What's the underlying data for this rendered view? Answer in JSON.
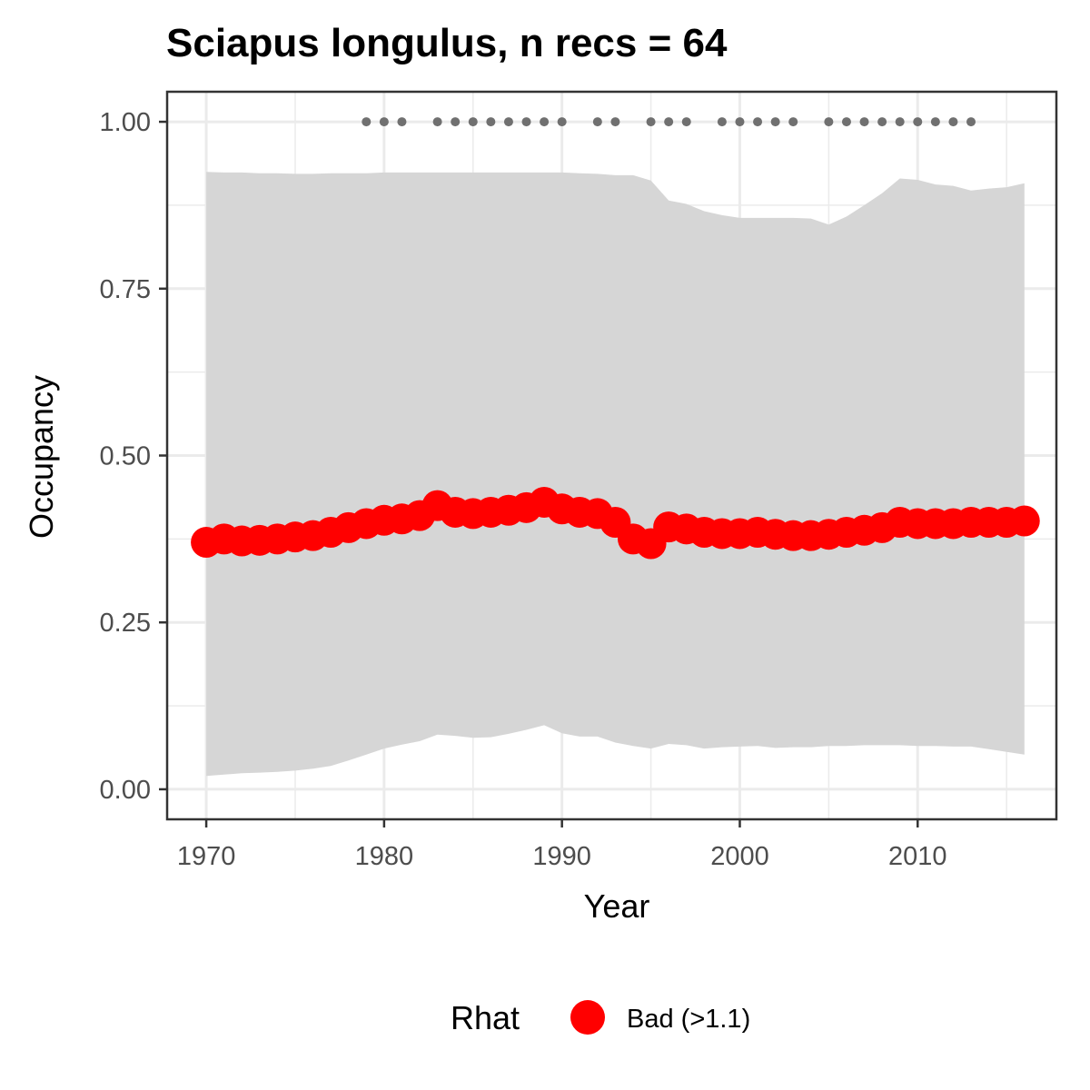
{
  "chart_data": {
    "type": "line",
    "title": "Sciapus longulus, n recs = 64",
    "xlabel": "Year",
    "ylabel": "Occupancy",
    "xlim": [
      1967.8,
      2017.8
    ],
    "ylim": [
      -0.045,
      1.045
    ],
    "x_ticks": [
      1970,
      1980,
      1990,
      2000,
      2010
    ],
    "x_tick_labels": [
      "1970",
      "1980",
      "1990",
      "2000",
      "2010"
    ],
    "y_ticks": [
      0,
      0.25,
      0.5,
      0.75,
      1.0
    ],
    "y_tick_labels": [
      "0.00",
      "0.25",
      "0.50",
      "0.75",
      "1.00"
    ],
    "grid": true,
    "legend": {
      "title": "Rhat",
      "position": "bottom",
      "entries": [
        {
          "label": "Bad (>1.1)",
          "color": "#ff0000"
        }
      ]
    },
    "colors": {
      "ribbon": "#d6d6d6",
      "series": "#ff0000",
      "records": "#707070",
      "grid": "#ebebeb",
      "panel_border": "#333333"
    },
    "series": [
      {
        "name": "Bad (>1.1)",
        "x": [
          1970,
          1971,
          1972,
          1973,
          1974,
          1975,
          1976,
          1977,
          1978,
          1979,
          1980,
          1981,
          1982,
          1983,
          1984,
          1985,
          1986,
          1987,
          1988,
          1989,
          1990,
          1991,
          1992,
          1993,
          1994,
          1995,
          1996,
          1997,
          1998,
          1999,
          2000,
          2001,
          2002,
          2003,
          2004,
          2005,
          2006,
          2007,
          2008,
          2009,
          2010,
          2011,
          2012,
          2013,
          2014,
          2015,
          2016
        ],
        "mean": [
          0.37,
          0.375,
          0.372,
          0.373,
          0.375,
          0.378,
          0.38,
          0.385,
          0.392,
          0.398,
          0.403,
          0.405,
          0.41,
          0.425,
          0.415,
          0.413,
          0.415,
          0.418,
          0.422,
          0.43,
          0.42,
          0.415,
          0.413,
          0.4,
          0.375,
          0.368,
          0.393,
          0.39,
          0.385,
          0.383,
          0.383,
          0.385,
          0.382,
          0.38,
          0.38,
          0.382,
          0.385,
          0.388,
          0.392,
          0.4,
          0.398,
          0.398,
          0.398,
          0.4,
          0.4,
          0.4,
          0.402
        ],
        "upper": [
          0.925,
          0.924,
          0.924,
          0.923,
          0.923,
          0.922,
          0.922,
          0.923,
          0.923,
          0.923,
          0.924,
          0.924,
          0.924,
          0.924,
          0.924,
          0.924,
          0.924,
          0.924,
          0.924,
          0.924,
          0.924,
          0.923,
          0.922,
          0.92,
          0.92,
          0.912,
          0.882,
          0.877,
          0.866,
          0.86,
          0.856,
          0.856,
          0.856,
          0.856,
          0.855,
          0.846,
          0.858,
          0.875,
          0.893,
          0.915,
          0.913,
          0.906,
          0.904,
          0.897,
          0.9,
          0.902,
          0.908
        ],
        "lower": [
          0.02,
          0.022,
          0.024,
          0.025,
          0.026,
          0.028,
          0.031,
          0.035,
          0.043,
          0.052,
          0.061,
          0.067,
          0.072,
          0.082,
          0.08,
          0.077,
          0.078,
          0.083,
          0.089,
          0.096,
          0.084,
          0.079,
          0.079,
          0.07,
          0.065,
          0.061,
          0.068,
          0.066,
          0.061,
          0.063,
          0.064,
          0.065,
          0.062,
          0.063,
          0.063,
          0.065,
          0.065,
          0.066,
          0.066,
          0.066,
          0.065,
          0.065,
          0.064,
          0.064,
          0.06,
          0.056,
          0.052
        ]
      }
    ],
    "records": {
      "y": 1.0,
      "years": [
        1979,
        1980,
        1981,
        1983,
        1984,
        1985,
        1986,
        1987,
        1988,
        1989,
        1990,
        1992,
        1993,
        1995,
        1996,
        1997,
        1999,
        2000,
        2001,
        2002,
        2003,
        2005,
        2006,
        2007,
        2008,
        2009,
        2010,
        2011,
        2012,
        2013
      ]
    }
  }
}
